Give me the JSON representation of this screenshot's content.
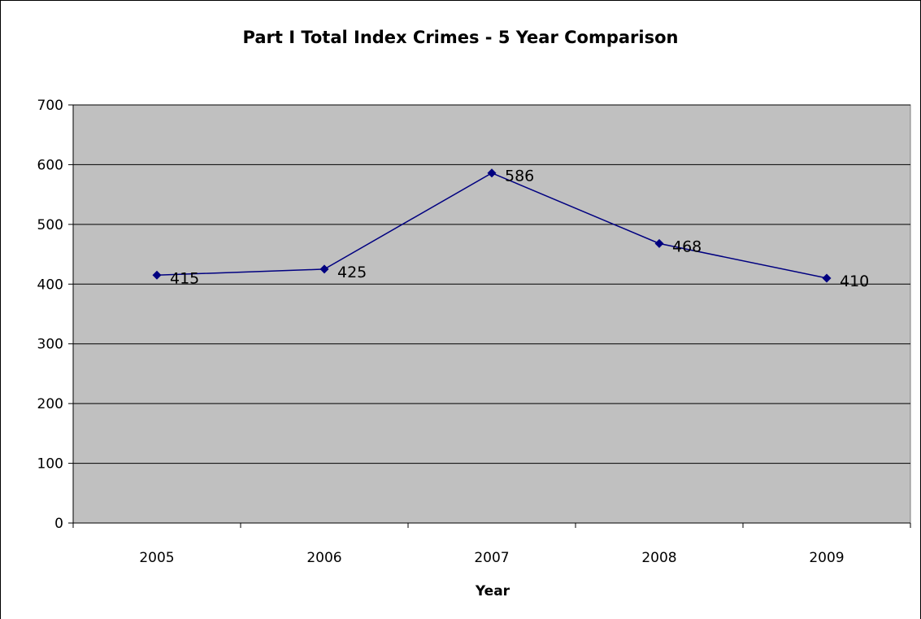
{
  "chart_data": {
    "type": "line",
    "title": "Part I Total Index Crimes - 5 Year Comparison",
    "xlabel": "Year",
    "ylabel": "",
    "categories": [
      "2005",
      "2006",
      "2007",
      "2008",
      "2009"
    ],
    "series": [
      {
        "values": [
          415,
          425,
          586,
          468,
          410
        ]
      }
    ],
    "data_labels": [
      "415",
      "425",
      "586",
      "468",
      "410"
    ],
    "ylim": [
      0,
      700
    ],
    "yticks": [
      "0",
      "100",
      "200",
      "300",
      "400",
      "500",
      "600",
      "700"
    ],
    "grid": true,
    "legend": "none",
    "colors": {
      "plot_background": "#c0c0c0",
      "series_line": "#000080",
      "gridline": "#000000"
    }
  }
}
